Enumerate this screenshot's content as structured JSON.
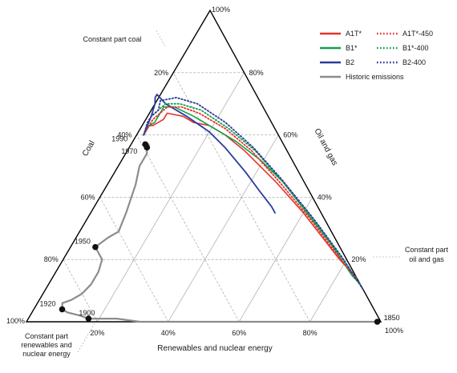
{
  "chart_data": {
    "type": "ternary-line",
    "axes": {
      "bottom": {
        "label": "Renewables and nuclear energy",
        "ticks": [
          "20%",
          "40%",
          "60%",
          "80%"
        ]
      },
      "left": {
        "label": "Coal",
        "ticks": [
          "20%",
          "40%",
          "60%",
          "80%"
        ]
      },
      "right": {
        "label": "Oil and gas",
        "ticks": [
          "20%",
          "40%",
          "60%",
          "80%"
        ]
      },
      "corner_labels": {
        "top": "100%",
        "bottom_left": "100%",
        "bottom_right": "100%"
      }
    },
    "annotations": {
      "constant_coal": "Constant part coal",
      "constant_oil_gas": [
        "Constant part",
        "oil and gas"
      ],
      "constant_renewables": [
        "Constant part",
        "renewables and",
        "nuclear energy"
      ]
    },
    "legend": [
      {
        "name": "A1T*",
        "color": "#e8312a",
        "style": "solid"
      },
      {
        "name": "A1T*-450",
        "color": "#e8312a",
        "style": "dotted"
      },
      {
        "name": "B1*",
        "color": "#13a04a",
        "style": "solid"
      },
      {
        "name": "B1*-400",
        "color": "#13a04a",
        "style": "dotted"
      },
      {
        "name": "B2",
        "color": "#2b3a9e",
        "style": "solid"
      },
      {
        "name": "B2-400",
        "color": "#2b3a9e",
        "style": "dotted"
      },
      {
        "name": "Historic emissions",
        "color": "#8c8c8c",
        "style": "solid"
      }
    ],
    "historic_years": [
      {
        "label": "1850",
        "coal": 1,
        "oil_gas": 0,
        "renewables": 99
      },
      {
        "label": "1900",
        "coal": 82,
        "oil_gas": 1,
        "renewables": 17
      },
      {
        "label": "1920",
        "coal": 88,
        "oil_gas": 4,
        "renewables": 8
      },
      {
        "label": "1950",
        "coal": 69,
        "oil_gas": 24,
        "renewables": 7
      },
      {
        "label": "1970",
        "coal": 39,
        "oil_gas": 56,
        "renewables": 5
      },
      {
        "label": "1990",
        "coal": 39,
        "oil_gas": 57,
        "renewables": 4
      }
    ],
    "series": [
      {
        "name": "Historic emissions",
        "color": "#8c8c8c",
        "style": "solid",
        "width": 2.2,
        "points": [
          [
            1,
            0
          ],
          [
            2,
            0
          ],
          [
            3,
            0
          ],
          [
            5,
            0
          ],
          [
            10,
            0
          ],
          [
            20,
            0
          ],
          [
            30,
            0
          ],
          [
            40,
            0
          ],
          [
            50,
            0
          ],
          [
            60,
            0
          ],
          [
            68,
            0
          ],
          [
            74,
            1
          ],
          [
            78,
            1
          ],
          [
            81,
            1
          ],
          [
            82,
            1
          ],
          [
            84,
            2
          ],
          [
            87,
            3
          ],
          [
            88,
            4
          ],
          [
            87,
            6
          ],
          [
            84,
            7
          ],
          [
            80,
            9
          ],
          [
            76,
            12
          ],
          [
            72,
            16
          ],
          [
            69,
            20
          ],
          [
            69,
            24
          ],
          [
            64,
            27
          ],
          [
            60,
            29
          ],
          [
            55,
            35
          ],
          [
            48,
            44
          ],
          [
            44,
            50
          ],
          [
            40,
            54
          ],
          [
            39,
            56
          ],
          [
            38,
            57
          ],
          [
            39,
            57
          ]
        ]
      },
      {
        "name": "A1T*",
        "color": "#e8312a",
        "style": "solid",
        "width": 1.6,
        "points": [
          [
            38,
            60
          ],
          [
            36,
            62
          ],
          [
            35,
            63
          ],
          [
            34,
            63
          ],
          [
            30,
            65
          ],
          [
            28,
            67
          ],
          [
            24,
            66
          ],
          [
            22,
            64
          ],
          [
            18,
            63
          ],
          [
            15,
            60
          ],
          [
            12,
            55
          ],
          [
            8,
            45
          ],
          [
            5,
            35
          ],
          [
            2,
            20
          ],
          [
            0,
            14
          ]
        ]
      },
      {
        "name": "B1*",
        "color": "#13a04a",
        "style": "solid",
        "width": 1.6,
        "points": [
          [
            38,
            60
          ],
          [
            35,
            63
          ],
          [
            33,
            64
          ],
          [
            31,
            66
          ],
          [
            28,
            69
          ],
          [
            25,
            69
          ],
          [
            21,
            66
          ],
          [
            17,
            62
          ],
          [
            13,
            58
          ],
          [
            9,
            52
          ],
          [
            6,
            45
          ],
          [
            4,
            35
          ],
          [
            2,
            25
          ],
          [
            1,
            15
          ],
          [
            0,
            12
          ]
        ]
      },
      {
        "name": "B2",
        "color": "#2b3a9e",
        "style": "solid",
        "width": 1.8,
        "points": [
          [
            38,
            60
          ],
          [
            33,
            66
          ],
          [
            30,
            70
          ],
          [
            29,
            72
          ],
          [
            28,
            73
          ],
          [
            27,
            70
          ],
          [
            25,
            68
          ],
          [
            23,
            66
          ],
          [
            19,
            61
          ],
          [
            17,
            56
          ],
          [
            15,
            48
          ],
          [
            14,
            42
          ],
          [
            13,
            37
          ],
          [
            13,
            35
          ]
        ]
      },
      {
        "name": "A1T*-450",
        "color": "#e8312a",
        "style": "dotted",
        "width": 1.8,
        "points": [
          [
            38,
            60
          ],
          [
            35,
            63
          ],
          [
            33,
            65
          ],
          [
            30,
            67
          ],
          [
            27,
            69
          ],
          [
            23,
            69
          ],
          [
            19,
            67
          ],
          [
            14,
            62
          ],
          [
            10,
            55
          ],
          [
            7,
            45
          ],
          [
            4,
            33
          ],
          [
            2,
            22
          ],
          [
            0,
            12
          ]
        ]
      },
      {
        "name": "B1*-400",
        "color": "#13a04a",
        "style": "dotted",
        "width": 1.8,
        "points": [
          [
            38,
            60
          ],
          [
            35,
            64
          ],
          [
            33,
            66
          ],
          [
            30,
            68
          ],
          [
            27,
            70
          ],
          [
            23,
            70
          ],
          [
            18,
            68
          ],
          [
            13,
            62
          ],
          [
            9,
            55
          ],
          [
            6,
            45
          ],
          [
            3,
            32
          ],
          [
            1,
            20
          ],
          [
            0,
            11
          ]
        ]
      },
      {
        "name": "B2-400",
        "color": "#2b3a9e",
        "style": "dotted",
        "width": 1.8,
        "points": [
          [
            38,
            60
          ],
          [
            35,
            64
          ],
          [
            33,
            66
          ],
          [
            30,
            68
          ],
          [
            28,
            71
          ],
          [
            23,
            72
          ],
          [
            18,
            70
          ],
          [
            13,
            64
          ],
          [
            9,
            56
          ],
          [
            6,
            46
          ],
          [
            3,
            33
          ],
          [
            1,
            21
          ],
          [
            0,
            10
          ]
        ]
      }
    ]
  }
}
